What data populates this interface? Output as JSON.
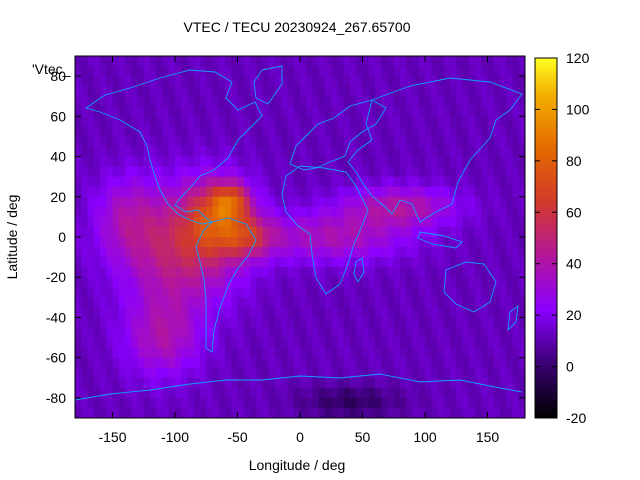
{
  "chart_data": {
    "type": "heatmap",
    "title": "VTEC / TECU 20230924_267.65700",
    "xlabel": "Longitude / deg",
    "ylabel": "Latitude / deg",
    "legend_key": "'Vtec_",
    "xlim": [
      -180,
      180
    ],
    "ylim": [
      -90,
      90
    ],
    "x_ticks": [
      -150,
      -100,
      -50,
      0,
      50,
      100,
      150
    ],
    "y_ticks": [
      -80,
      -60,
      -40,
      -20,
      0,
      20,
      40,
      60,
      80
    ],
    "colorbar": {
      "min": -20,
      "max": 120,
      "ticks": [
        -20,
        0,
        20,
        40,
        60,
        80,
        100,
        120
      ]
    },
    "grid": false,
    "features": {
      "background_tecu": 12,
      "peak_tecu": 115,
      "peak_location_lon_lat": [
        -60,
        15
      ],
      "polar_minimum_tecu": 0,
      "polar_minimum_location_lon_lat": [
        40,
        -82
      ]
    }
  }
}
